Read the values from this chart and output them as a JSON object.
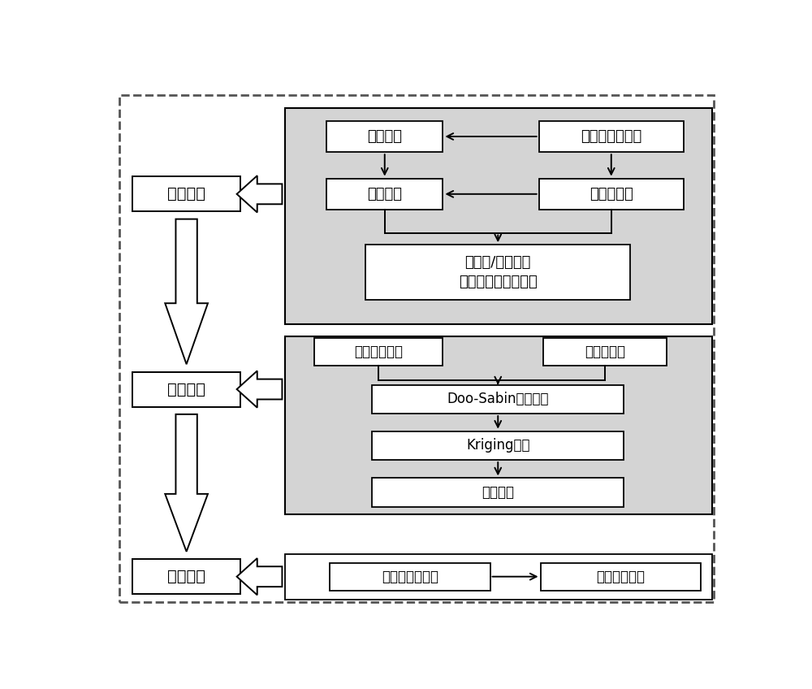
{
  "bg_color": "#ffffff",
  "outer_border_color": "#666666",
  "gray_fill": "#d4d4d4",
  "box_fill_white": "#ffffff",
  "text_color": "#000000",
  "section1_label": "点云获取",
  "section2_label": "点云处理",
  "section3_label": "方量计算",
  "box_liaochang": "料场扫描",
  "box_3d": "三维激光扫描仪",
  "box_dianyun": "点云配准",
  "box_jisuanji": "计算机处理",
  "box_kaiwajian": "开挖面/原始表面\n原始不规则分布点云",
  "box_yuanshi": "原始地形点云",
  "box_kaiwaface": "开挖面点云",
  "box_doo": "Doo-Sabin光滑处理",
  "box_kriging": "Kriging插值",
  "box_jisuanpc": "计算点云",
  "box_bianjie": "边界内点云提取",
  "box_kaiwajiliang": "开挖方量计算"
}
